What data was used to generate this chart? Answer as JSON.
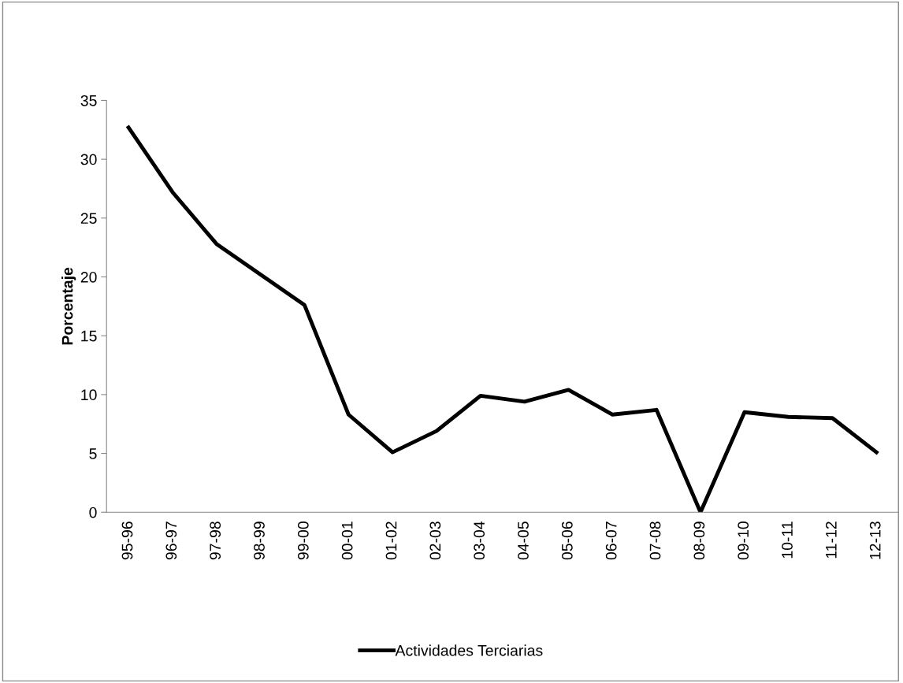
{
  "chart_data": {
    "type": "line",
    "ylabel": "Porcentaje",
    "categories": [
      "95-96",
      "96-97",
      "97-98",
      "98-99",
      "99-00",
      "00-01",
      "01-02",
      "02-03",
      "03-04",
      "04-05",
      "05-06",
      "06-07",
      "07-08",
      "08-09",
      "09-10",
      "10-11",
      "11-12",
      "12-13"
    ],
    "series": [
      {
        "name": "Actividades Terciarias",
        "color": "#000000",
        "values": [
          32.7,
          27.2,
          22.8,
          20.2,
          17.6,
          8.3,
          5.1,
          6.9,
          9.9,
          9.4,
          10.4,
          8.3,
          8.7,
          0,
          8.5,
          8.1,
          8.0,
          5.1
        ]
      }
    ],
    "ylim": [
      0,
      35
    ],
    "yticks": [
      0,
      5,
      10,
      15,
      20,
      25,
      30,
      35
    ],
    "grid": false,
    "legend": "bottom",
    "marker": "none",
    "line_style": "solid"
  }
}
